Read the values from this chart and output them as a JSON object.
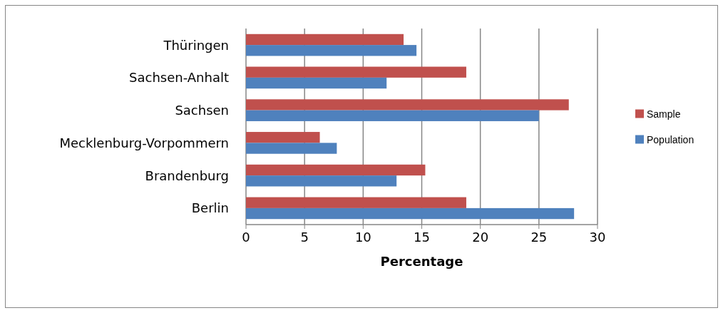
{
  "chart_data": {
    "type": "bar",
    "orientation": "horizontal",
    "xlabel": "Percentage",
    "categories": [
      "Thüringen",
      "Sachsen-Anhalt",
      "Sachsen",
      "Mecklenburg-Vorpommern",
      "Brandenburg",
      "Berlin"
    ],
    "series": [
      {
        "name": "Sample",
        "color": "#c0504d",
        "values": [
          13.45,
          18.8,
          27.55,
          6.3,
          15.3,
          18.8
        ]
      },
      {
        "name": "Population",
        "color": "#4f81bd",
        "values": [
          14.55,
          12.0,
          25.0,
          7.75,
          12.85,
          28.0
        ]
      }
    ],
    "xlim": [
      0,
      30
    ],
    "xticks": [
      0,
      5,
      10,
      15,
      20,
      25,
      30
    ],
    "grid": "x",
    "legend": "right"
  }
}
